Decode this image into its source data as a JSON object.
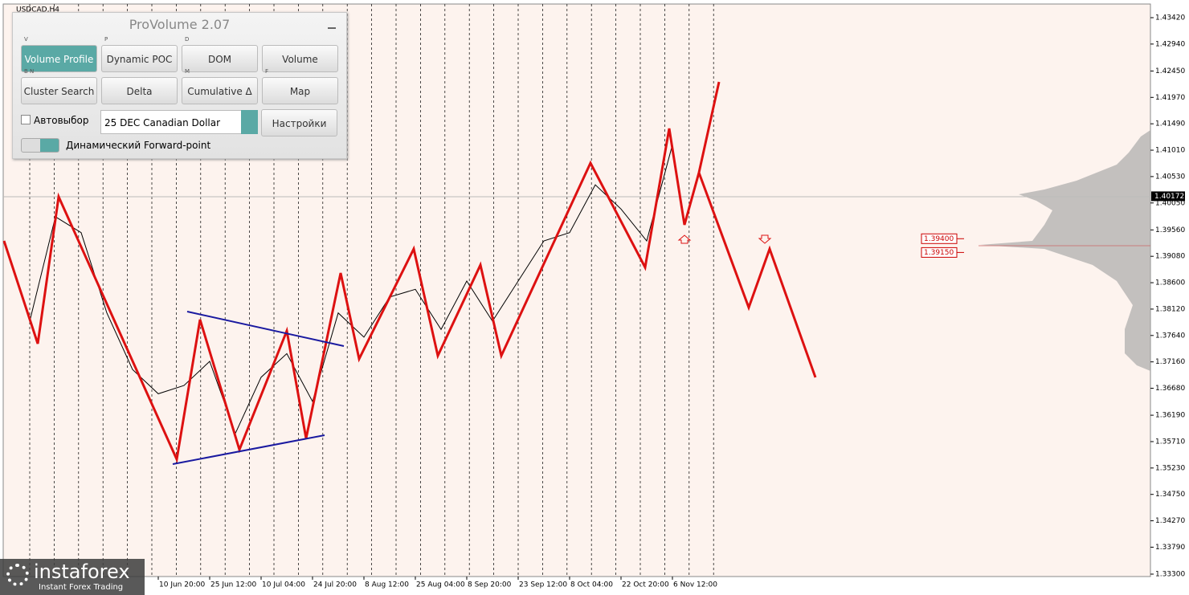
{
  "chart_data": {
    "type": "line",
    "title": "USDCAD,H4",
    "categories": [
      null,
      null,
      null,
      null,
      null,
      null,
      "10 Jun 20:00",
      null,
      "25 Jun 12:00",
      null,
      "10 Jul 04:00",
      null,
      "24 Jul 20:00",
      null,
      "8 Aug 12:00",
      null,
      "25 Aug 04:00",
      null,
      "8 Sep 20:00",
      null,
      "23 Sep 12:00",
      null,
      "8 Oct 04:00",
      null,
      "22 Oct 20:00",
      null,
      "6 Nov 12:00"
    ],
    "series": [
      {
        "color": "#000000",
        "values": [
          1.3936,
          1.379,
          1.398,
          1.3951,
          1.3805,
          1.3702,
          1.3658,
          1.3673,
          1.3717,
          1.3586,
          1.3688,
          1.3731,
          1.3644,
          1.3805,
          1.3761,
          1.3834,
          1.3848,
          1.3775,
          1.3863,
          1.379,
          1.3863,
          1.3936,
          1.3951,
          1.4038,
          1.3994,
          1.3936,
          1.4111
        ]
      }
    ],
    "ylim": [
      1.333,
      1.4342
    ],
    "yticks": [
      {
        "value": 1.4342,
        "label": "1.43420"
      },
      {
        "value": 1.4294,
        "label": "1.42940"
      },
      {
        "value": 1.4245,
        "label": "1.42450"
      },
      {
        "value": 1.4197,
        "label": "1.41970"
      },
      {
        "value": 1.4149,
        "label": "1.41490"
      },
      {
        "value": 1.4101,
        "label": "1.41010"
      },
      {
        "value": 1.4053,
        "label": "1.40530"
      },
      {
        "value": 1.4005,
        "label": "1.40050"
      },
      {
        "value": 1.3956,
        "label": "1.39560"
      },
      {
        "value": 1.3908,
        "label": "1.39080"
      },
      {
        "value": 1.386,
        "label": "1.38600"
      },
      {
        "value": 1.3812,
        "label": "1.38120"
      },
      {
        "value": 1.3764,
        "label": "1.37640"
      },
      {
        "value": 1.3716,
        "label": "1.37160"
      },
      {
        "value": 1.3668,
        "label": "1.36680"
      },
      {
        "value": 1.3619,
        "label": "1.36190"
      },
      {
        "value": 1.3571,
        "label": "1.35710"
      },
      {
        "value": 1.3523,
        "label": "1.35230"
      },
      {
        "value": 1.3475,
        "label": "1.34750"
      },
      {
        "value": 1.3427,
        "label": "1.34270"
      },
      {
        "value": 1.3379,
        "label": "1.33790"
      },
      {
        "value": 1.333,
        "label": "1.33300"
      }
    ],
    "last_price": {
      "value": 1.40172,
      "label": "1.40172"
    },
    "levels": [
      {
        "value": 1.394,
        "label": "1.39400"
      },
      {
        "value": 1.3915,
        "label": "1.39150"
      }
    ],
    "level_color": "#cc0000"
  },
  "panel": {
    "title": "ProVolume 2.07",
    "buttons": [
      {
        "key": "V",
        "label": "Volume Profile"
      },
      {
        "key": "P",
        "label": "Dynamic POC"
      },
      {
        "key": "D",
        "label": "DOM"
      },
      {
        "key": "",
        "label": "Volume"
      },
      {
        "key": "B N",
        "label": "Cluster Search"
      },
      {
        "key": "",
        "label": "Delta"
      },
      {
        "key": "M",
        "label": "Cumulative Δ"
      },
      {
        "key": "F",
        "label": "Map"
      }
    ],
    "autoselect": "Автовыбор",
    "instrument": "25 DEC Canadian Dollar",
    "settings": "Настройки",
    "forward": "Динамический Forward-point"
  },
  "logo": {
    "name": "instaforex",
    "tagline": "Instant Forex Trading"
  }
}
